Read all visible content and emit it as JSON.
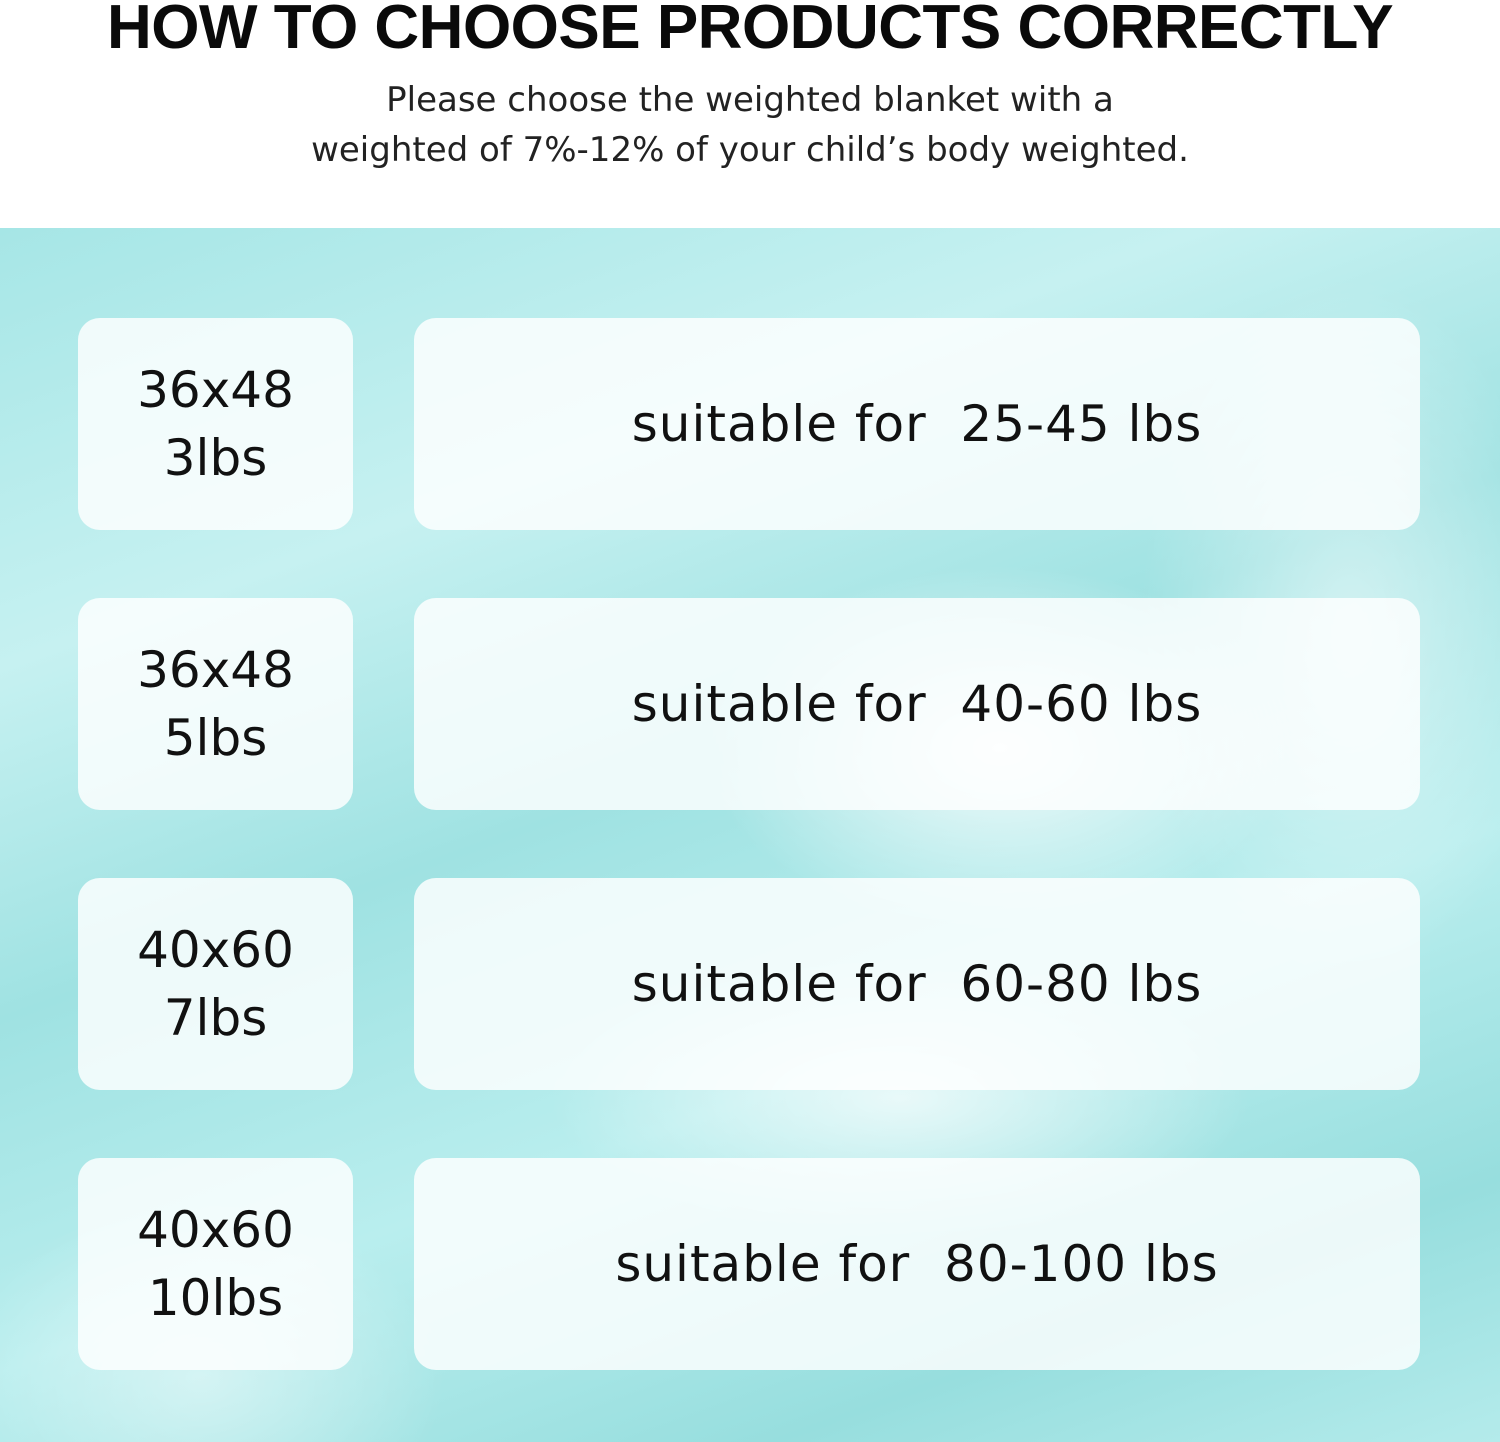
{
  "header": {
    "title": "HOW TO CHOOSE PRODUCTS CORRECTLY",
    "subtitle_line1": "Please choose the weighted blanket with a",
    "subtitle_line2": "weighted of 7%-12% of your child’s body weighted."
  },
  "colors": {
    "background": "#a6e6e6",
    "card": "#ffffff",
    "text": "#111111"
  },
  "rows": [
    {
      "size": "36x48",
      "weight": "3lbs",
      "suitable": "suitable for  25-45 lbs"
    },
    {
      "size": "36x48",
      "weight": "5lbs",
      "suitable": "suitable for  40-60 lbs"
    },
    {
      "size": "40x60",
      "weight": "7lbs",
      "suitable": "suitable for  60-80 lbs"
    },
    {
      "size": "40x60",
      "weight": "10lbs",
      "suitable": "suitable for  80-100 lbs"
    }
  ]
}
